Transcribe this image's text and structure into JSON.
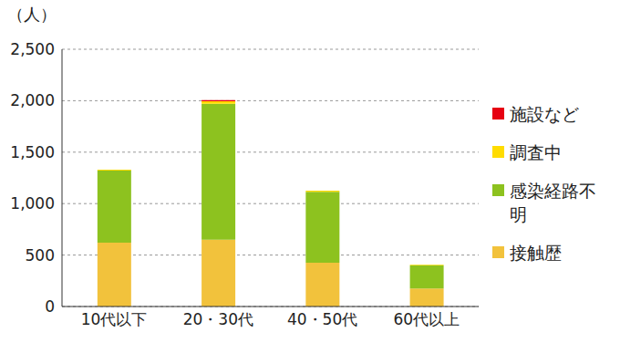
{
  "chart_data": {
    "type": "bar",
    "stacked": true,
    "grid": true,
    "legend": "right",
    "y_label": "（人）",
    "categories": [
      "10代以下",
      "20・30代",
      "40・50代",
      "60代以上"
    ],
    "series": [
      {
        "name": "接触歴",
        "color": "#f2c23c",
        "values": [
          620,
          650,
          425,
          175
        ]
      },
      {
        "name": "感染経路不明",
        "color": "#8dc21f",
        "values": [
          700,
          1320,
          690,
          225
        ]
      },
      {
        "name": "調査中",
        "color": "#ffdc00",
        "values": [
          10,
          25,
          10,
          5
        ]
      },
      {
        "name": "施設など",
        "color": "#e60012",
        "values": [
          0,
          10,
          0,
          0
        ]
      }
    ],
    "ylim": [
      0,
      2500
    ],
    "yticks": [
      0,
      500,
      {
        "value": 1000,
        "label": "1,000"
      },
      {
        "value": 1500,
        "label": "1,500"
      },
      {
        "value": 2000,
        "label": "2,000"
      },
      {
        "value": 2500,
        "label": "2,500"
      }
    ]
  }
}
